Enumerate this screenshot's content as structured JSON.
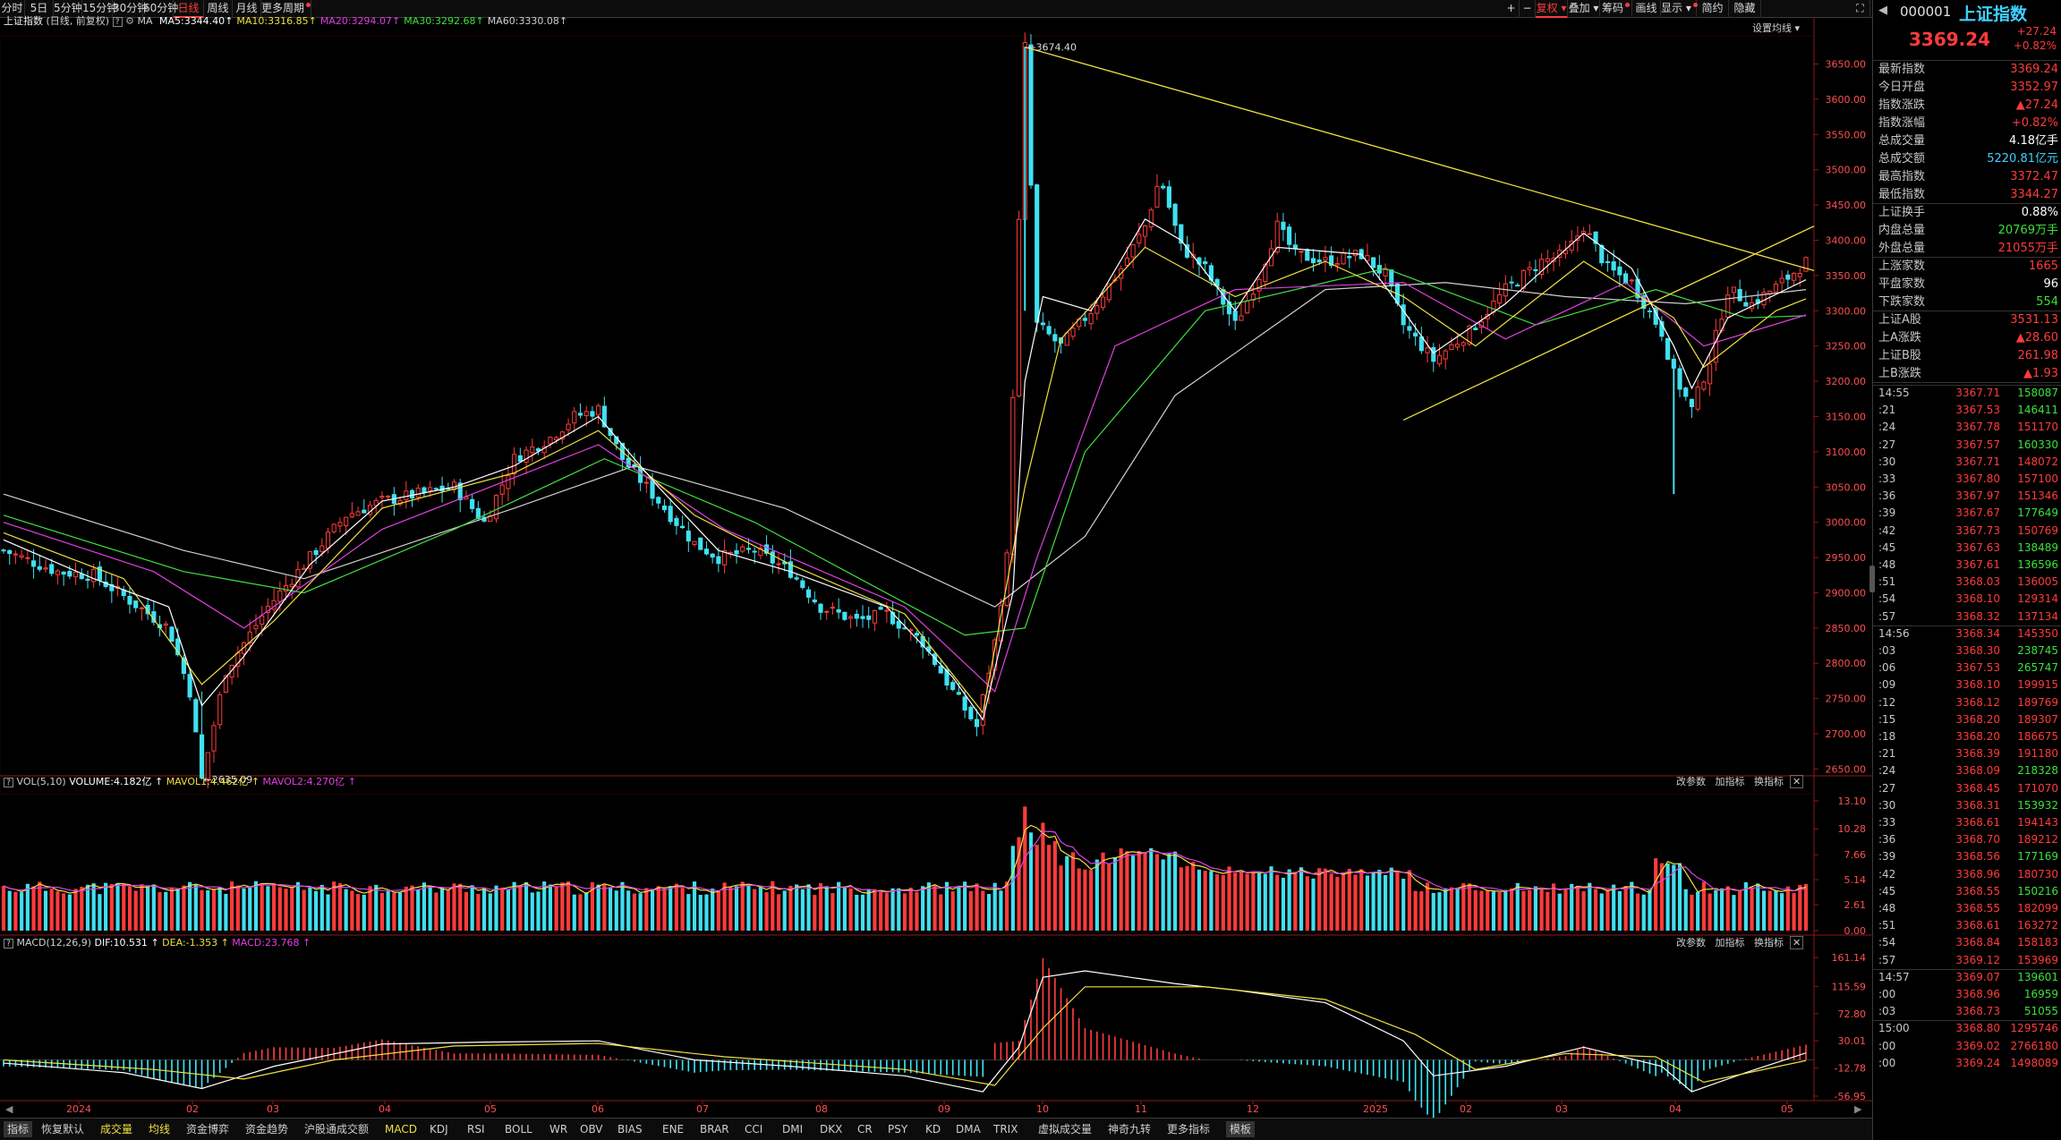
{
  "topbar": {
    "periods": [
      "分时",
      "5日",
      "5分钟",
      "15分钟",
      "30分钟",
      "60分钟",
      "日线",
      "周线",
      "月线",
      "更多周期"
    ],
    "active": "日线",
    "tools": [
      "复权",
      "叠加",
      "筹码",
      "画线",
      "显示",
      "简约",
      "隐藏"
    ]
  },
  "header": {
    "name": "上证指数",
    "sub": "(日线, 前复权)",
    "ma_label": "MA",
    "ma": [
      {
        "t": "MA5:3344.40",
        "c": "#ffffff"
      },
      {
        "t": "MA10:3316.85",
        "c": "#f0e040"
      },
      {
        "t": "MA20:3294.07",
        "c": "#e040e0"
      },
      {
        "t": "MA30:3292.68",
        "c": "#40e040"
      },
      {
        "t": "MA60:3330.08",
        "c": "#d0d0d0"
      }
    ],
    "setting": "设置均线"
  },
  "chart_data": {
    "type": "candlestick",
    "y_ticks": [
      3650,
      3600,
      3550,
      3500,
      3450,
      3400,
      3350,
      3300,
      3250,
      3200,
      3150,
      3100,
      3050,
      3000,
      2950,
      2900,
      2850,
      2800,
      2750,
      2700,
      2650
    ],
    "y_tick_labels": [
      "3650.00",
      "3600.00",
      "3550.00",
      "3500.00",
      "3450.00",
      "3400.00",
      "3350.00",
      "3300.00",
      "3250.00",
      "3200.00",
      "3150.00",
      "3100.00",
      "3050.00",
      "3000.00",
      "2950.00",
      "2900.00",
      "2850.00",
      "2800.00",
      "2750.00",
      "2700.00",
      "2650.00"
    ],
    "x_labels": [
      "2024",
      "02",
      "03",
      "04",
      "05",
      "06",
      "07",
      "08",
      "09",
      "10",
      "11",
      "12",
      "2025",
      "02",
      "03",
      "04",
      "05"
    ],
    "high_mark": "3674.40",
    "low_mark": "2635.09",
    "close_path": [
      [
        0,
        2960
      ],
      [
        18,
        2930
      ],
      [
        30,
        2925
      ],
      [
        45,
        2880
      ],
      [
        55,
        2850
      ],
      [
        62,
        2760
      ],
      [
        66,
        2635
      ],
      [
        74,
        2790
      ],
      [
        88,
        2880
      ],
      [
        102,
        2950
      ],
      [
        114,
        3010
      ],
      [
        126,
        3030
      ],
      [
        138,
        3040
      ],
      [
        150,
        3050
      ],
      [
        160,
        3000
      ],
      [
        170,
        3090
      ],
      [
        182,
        3120
      ],
      [
        190,
        3150
      ],
      [
        198,
        3160
      ],
      [
        206,
        3090
      ],
      [
        218,
        3030
      ],
      [
        230,
        2970
      ],
      [
        238,
        2950
      ],
      [
        250,
        2960
      ],
      [
        262,
        2930
      ],
      [
        272,
        2880
      ],
      [
        284,
        2860
      ],
      [
        294,
        2870
      ],
      [
        306,
        2830
      ],
      [
        316,
        2760
      ],
      [
        324,
        2710
      ],
      [
        330,
        2830
      ],
      [
        334,
        2950
      ],
      [
        337,
        3300
      ],
      [
        340,
        3674
      ],
      [
        344,
        3280
      ],
      [
        352,
        3250
      ],
      [
        362,
        3300
      ],
      [
        372,
        3360
      ],
      [
        380,
        3420
      ],
      [
        385,
        3490
      ],
      [
        392,
        3390
      ],
      [
        400,
        3360
      ],
      [
        410,
        3280
      ],
      [
        418,
        3350
      ],
      [
        424,
        3420
      ],
      [
        430,
        3380
      ],
      [
        440,
        3370
      ],
      [
        452,
        3380
      ],
      [
        460,
        3350
      ],
      [
        466,
        3280
      ],
      [
        476,
        3230
      ],
      [
        488,
        3270
      ],
      [
        500,
        3330
      ],
      [
        512,
        3370
      ],
      [
        520,
        3380
      ],
      [
        526,
        3420
      ],
      [
        534,
        3360
      ],
      [
        542,
        3340
      ],
      [
        552,
        3270
      ],
      [
        556,
        3210
      ],
      [
        562,
        3160
      ],
      [
        568,
        3230
      ],
      [
        574,
        3330
      ],
      [
        582,
        3310
      ],
      [
        592,
        3340
      ],
      [
        600,
        3369
      ]
    ],
    "ma5_path": [
      [
        0,
        2975
      ],
      [
        30,
        2920
      ],
      [
        55,
        2880
      ],
      [
        66,
        2740
      ],
      [
        80,
        2810
      ],
      [
        102,
        2940
      ],
      [
        126,
        3030
      ],
      [
        150,
        3050
      ],
      [
        170,
        3080
      ],
      [
        198,
        3150
      ],
      [
        218,
        3050
      ],
      [
        238,
        2960
      ],
      [
        262,
        2930
      ],
      [
        294,
        2880
      ],
      [
        316,
        2780
      ],
      [
        326,
        2720
      ],
      [
        336,
        2900
      ],
      [
        340,
        3200
      ],
      [
        346,
        3320
      ],
      [
        362,
        3300
      ],
      [
        380,
        3430
      ],
      [
        392,
        3400
      ],
      [
        410,
        3300
      ],
      [
        424,
        3390
      ],
      [
        452,
        3380
      ],
      [
        466,
        3300
      ],
      [
        476,
        3240
      ],
      [
        500,
        3310
      ],
      [
        526,
        3410
      ],
      [
        542,
        3360
      ],
      [
        556,
        3250
      ],
      [
        562,
        3190
      ],
      [
        574,
        3290
      ],
      [
        600,
        3344
      ]
    ],
    "ma10_path": [
      [
        0,
        2985
      ],
      [
        40,
        2920
      ],
      [
        66,
        2770
      ],
      [
        90,
        2860
      ],
      [
        126,
        3020
      ],
      [
        170,
        3070
      ],
      [
        198,
        3130
      ],
      [
        230,
        3010
      ],
      [
        262,
        2940
      ],
      [
        300,
        2870
      ],
      [
        326,
        2730
      ],
      [
        340,
        3050
      ],
      [
        352,
        3260
      ],
      [
        380,
        3390
      ],
      [
        410,
        3320
      ],
      [
        440,
        3370
      ],
      [
        466,
        3320
      ],
      [
        490,
        3250
      ],
      [
        526,
        3370
      ],
      [
        556,
        3290
      ],
      [
        566,
        3220
      ],
      [
        590,
        3300
      ],
      [
        600,
        3317
      ]
    ],
    "ma20_path": [
      [
        0,
        3000
      ],
      [
        50,
        2930
      ],
      [
        80,
        2850
      ],
      [
        126,
        2990
      ],
      [
        198,
        3110
      ],
      [
        240,
        2990
      ],
      [
        300,
        2880
      ],
      [
        330,
        2760
      ],
      [
        344,
        2950
      ],
      [
        370,
        3250
      ],
      [
        410,
        3330
      ],
      [
        466,
        3340
      ],
      [
        500,
        3260
      ],
      [
        540,
        3340
      ],
      [
        566,
        3250
      ],
      [
        600,
        3294
      ]
    ],
    "ma30_path": [
      [
        0,
        3010
      ],
      [
        60,
        2930
      ],
      [
        100,
        2900
      ],
      [
        150,
        2990
      ],
      [
        200,
        3090
      ],
      [
        250,
        3000
      ],
      [
        320,
        2840
      ],
      [
        340,
        2850
      ],
      [
        360,
        3100
      ],
      [
        400,
        3300
      ],
      [
        460,
        3360
      ],
      [
        510,
        3280
      ],
      [
        550,
        3330
      ],
      [
        580,
        3290
      ],
      [
        600,
        3293
      ]
    ],
    "ma60_path": [
      [
        0,
        3040
      ],
      [
        60,
        2960
      ],
      [
        100,
        2920
      ],
      [
        170,
        3020
      ],
      [
        210,
        3080
      ],
      [
        260,
        3020
      ],
      [
        330,
        2880
      ],
      [
        360,
        2980
      ],
      [
        390,
        3180
      ],
      [
        440,
        3330
      ],
      [
        480,
        3340
      ],
      [
        520,
        3320
      ],
      [
        560,
        3310
      ],
      [
        600,
        3330
      ]
    ],
    "vol_ticks": [
      "13.10",
      "10.28",
      "7.66",
      "5.14",
      "2.61",
      "0.00"
    ],
    "macd_ticks": [
      "161.14",
      "115.59",
      "72.80",
      "30.01",
      "-12.78",
      "-56.95"
    ]
  },
  "volume": {
    "label": "VOL(5,10)",
    "volume": {
      "t": "VOLUME:4.182亿",
      "c": "#ffffff"
    },
    "mavol1": {
      "t": "MAVOL1:4.462亿",
      "c": "#f0e040"
    },
    "mavol2": {
      "t": "MAVOL2:4.270亿",
      "c": "#e040e0"
    }
  },
  "macd": {
    "label": "MACD(12,26,9)",
    "dif": {
      "t": "DIF:10.531",
      "c": "#ffffff"
    },
    "dea": {
      "t": "DEA:-1.353",
      "c": "#f0e040"
    },
    "macdv": {
      "t": "MACD:23.768",
      "c": "#e040e0"
    }
  },
  "panel_tools": [
    "改参数",
    "加指标",
    "换指标"
  ],
  "bottombar": [
    "指标",
    "恢复默认",
    "成交量",
    "均线",
    "资金博弈",
    "资金趋势",
    "沪股通成交额",
    "MACD",
    "KDJ",
    "RSI",
    "BOLL",
    "WR",
    "OBV",
    "BIAS",
    "ENE",
    "BRAR",
    "CCI",
    "DMI",
    "DKX",
    "CR",
    "PSY",
    "KD",
    "DMA",
    "TRIX",
    "虚拟成交量",
    "神奇九转",
    "更多指标",
    "模板"
  ],
  "quote": {
    "code": "000001",
    "name": "上证指数",
    "price": "3369.24",
    "change": "+27.24",
    "pct": "+0.82%",
    "rows": [
      {
        "k": "最新指数",
        "v": "3369.24",
        "c": "#ff3b3b"
      },
      {
        "k": "今日开盘",
        "v": "3352.97",
        "c": "#ff3b3b"
      },
      {
        "k": "指数涨跌",
        "v": "▲27.24",
        "c": "#ff3b3b"
      },
      {
        "k": "指数涨幅",
        "v": "+0.82%",
        "c": "#ff3b3b"
      },
      {
        "k": "总成交量",
        "v": "4.18亿手",
        "c": "#ffffff"
      },
      {
        "k": "总成交额",
        "v": "5220.81亿元",
        "c": "#40d0ff"
      },
      {
        "k": "最高指数",
        "v": "3372.47",
        "c": "#ff3b3b"
      },
      {
        "k": "最低指数",
        "v": "3344.27",
        "c": "#ff3b3b"
      },
      {
        "k": "上证换手",
        "v": "0.88%",
        "c": "#ffffff"
      },
      {
        "k": "内盘总量",
        "v": "20769万手",
        "c": "#3ce03c"
      },
      {
        "k": "外盘总量",
        "v": "21055万手",
        "c": "#ff3b3b"
      },
      {
        "k": "上涨家数",
        "v": "1665",
        "c": "#ff3b3b"
      },
      {
        "k": "平盘家数",
        "v": "96",
        "c": "#ffffff"
      },
      {
        "k": "下跌家数",
        "v": "554",
        "c": "#3ce03c"
      },
      {
        "k": "上证A股",
        "v": "3531.13",
        "c": "#ff3b3b"
      },
      {
        "k": "上A涨跌",
        "v": "▲28.60",
        "c": "#ff3b3b"
      },
      {
        "k": "上证B股",
        "v": "261.98",
        "c": "#ff3b3b"
      },
      {
        "k": "上B涨跌",
        "v": "▲1.93",
        "c": "#ff3b3b"
      }
    ],
    "ticks": [
      {
        "t": "14:55",
        "p": "3367.71",
        "q": "158087",
        "c": "#3ce03c"
      },
      {
        "t": ":21",
        "p": "3367.53",
        "q": "146411",
        "c": "#3ce03c"
      },
      {
        "t": ":24",
        "p": "3367.78",
        "q": "151170",
        "c": "#ff3b3b"
      },
      {
        "t": ":27",
        "p": "3367.57",
        "q": "160330",
        "c": "#3ce03c"
      },
      {
        "t": ":30",
        "p": "3367.71",
        "q": "148072",
        "c": "#ff3b3b"
      },
      {
        "t": ":33",
        "p": "3367.80",
        "q": "157100",
        "c": "#ff3b3b"
      },
      {
        "t": ":36",
        "p": "3367.97",
        "q": "151346",
        "c": "#ff3b3b"
      },
      {
        "t": ":39",
        "p": "3367.67",
        "q": "177649",
        "c": "#3ce03c"
      },
      {
        "t": ":42",
        "p": "3367.73",
        "q": "150769",
        "c": "#ff3b3b"
      },
      {
        "t": ":45",
        "p": "3367.63",
        "q": "138489",
        "c": "#3ce03c"
      },
      {
        "t": ":48",
        "p": "3367.61",
        "q": "136596",
        "c": "#3ce03c"
      },
      {
        "t": ":51",
        "p": "3368.03",
        "q": "136005",
        "c": "#ff3b3b"
      },
      {
        "t": ":54",
        "p": "3368.10",
        "q": "129314",
        "c": "#ff3b3b"
      },
      {
        "t": ":57",
        "p": "3368.32",
        "q": "137134",
        "c": "#ff3b3b"
      },
      {
        "t": "14:56",
        "p": "3368.34",
        "q": "145350",
        "c": "#ff3b3b"
      },
      {
        "t": ":03",
        "p": "3368.30",
        "q": "238745",
        "c": "#3ce03c"
      },
      {
        "t": ":06",
        "p": "3367.53",
        "q": "265747",
        "c": "#3ce03c"
      },
      {
        "t": ":09",
        "p": "3368.10",
        "q": "199915",
        "c": "#ff3b3b"
      },
      {
        "t": ":12",
        "p": "3368.12",
        "q": "189769",
        "c": "#ff3b3b"
      },
      {
        "t": ":15",
        "p": "3368.20",
        "q": "189307",
        "c": "#ff3b3b"
      },
      {
        "t": ":18",
        "p": "3368.20",
        "q": "186675",
        "c": "#ff3b3b"
      },
      {
        "t": ":21",
        "p": "3368.39",
        "q": "191180",
        "c": "#ff3b3b"
      },
      {
        "t": ":24",
        "p": "3368.09",
        "q": "218328",
        "c": "#3ce03c"
      },
      {
        "t": ":27",
        "p": "3368.45",
        "q": "171070",
        "c": "#ff3b3b"
      },
      {
        "t": ":30",
        "p": "3368.31",
        "q": "153932",
        "c": "#3ce03c"
      },
      {
        "t": ":33",
        "p": "3368.61",
        "q": "194143",
        "c": "#ff3b3b"
      },
      {
        "t": ":36",
        "p": "3368.70",
        "q": "189212",
        "c": "#ff3b3b"
      },
      {
        "t": ":39",
        "p": "3368.56",
        "q": "177169",
        "c": "#3ce03c"
      },
      {
        "t": ":42",
        "p": "3368.96",
        "q": "180730",
        "c": "#ff3b3b"
      },
      {
        "t": ":45",
        "p": "3368.55",
        "q": "150216",
        "c": "#3ce03c"
      },
      {
        "t": ":48",
        "p": "3368.55",
        "q": "182099",
        "c": "#ff3b3b"
      },
      {
        "t": ":51",
        "p": "3368.61",
        "q": "163272",
        "c": "#ff3b3b"
      },
      {
        "t": ":54",
        "p": "3368.84",
        "q": "158183",
        "c": "#ff3b3b"
      },
      {
        "t": ":57",
        "p": "3369.12",
        "q": "153969",
        "c": "#ff3b3b"
      },
      {
        "t": "14:57",
        "p": "3369.07",
        "q": "139601",
        "c": "#3ce03c"
      },
      {
        "t": ":00",
        "p": "3368.96",
        "q": "16959",
        "c": "#3ce03c"
      },
      {
        "t": ":03",
        "p": "3368.73",
        "q": "51055",
        "c": "#3ce03c"
      },
      {
        "t": "15:00",
        "p": "3368.80",
        "q": "1295746",
        "c": "#ff3b3b"
      },
      {
        "t": ":00",
        "p": "3369.02",
        "q": "2766180",
        "c": "#ff3b3b"
      },
      {
        "t": ":00",
        "p": "3369.24",
        "q": "1498089",
        "c": "#ff3b3b"
      }
    ]
  },
  "icons": {
    "up": "up-arrow-icon",
    "add": "plus-icon",
    "sub": "minus-icon"
  }
}
